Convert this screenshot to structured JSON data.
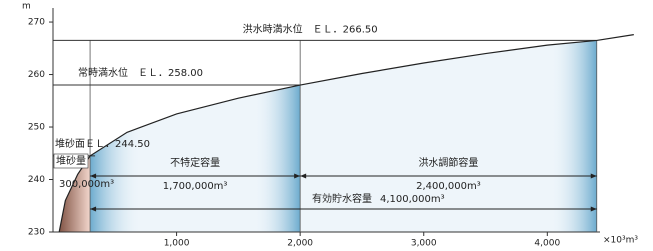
{
  "chart_data": {
    "type": "line",
    "y_unit": "m",
    "x_unit": "×10³m³",
    "x": [
      50,
      100,
      200,
      300,
      600,
      1000,
      1500,
      2000,
      2500,
      3000,
      3500,
      4000,
      4400,
      4700
    ],
    "values": [
      230,
      236,
      241,
      244.5,
      249,
      252.5,
      255.5,
      258,
      260.2,
      262.2,
      264,
      265.6,
      266.5,
      267.6
    ],
    "color": "#222222",
    "xlim": [
      0,
      4750
    ],
    "ylim": [
      230,
      271
    ],
    "xticks": [
      {
        "value": 1000,
        "label": "1,000"
      },
      {
        "value": 2000,
        "label": "2,000"
      },
      {
        "value": 3000,
        "label": "3,000"
      },
      {
        "value": 4000,
        "label": "4,000"
      }
    ],
    "yticks": [
      230,
      240,
      250,
      260,
      270
    ],
    "levels": [
      {
        "value": 266.5,
        "label": "洪水時満水位　ＥＬ．266.50"
      },
      {
        "value": 258,
        "label": "常時満水位　ＥＬ．258.00"
      },
      {
        "value": 244.5,
        "label": "堆砂面ＥＬ．244.50"
      }
    ],
    "capacities": [
      {
        "name": "堆砂量",
        "label": "300,000m³",
        "from": 0,
        "to": 300
      },
      {
        "name": "不特定容量",
        "label": "1,700,000m³",
        "from": 300,
        "to": 2000
      },
      {
        "name": "洪水調節容量",
        "label": "2,400,000m³",
        "from": 2000,
        "to": 4400
      },
      {
        "name": "有効貯水容量",
        "label": "4,100,000m³",
        "from": 300,
        "to": 4400
      }
    ]
  }
}
